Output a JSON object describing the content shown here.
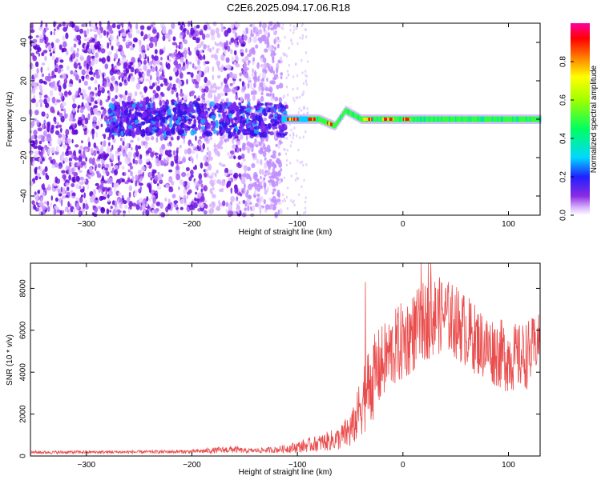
{
  "figure": {
    "title": "C2E6.2025.094.17.06.R18"
  },
  "chart_data": [
    {
      "type": "heatmap",
      "xlabel": "Height of straight line (km)",
      "ylabel": "Frequency (Hz)",
      "xlim": [
        -353,
        130
      ],
      "ylim": [
        -50,
        50
      ],
      "xticks": [
        -300,
        -200,
        -100,
        0,
        100
      ],
      "yticks": [
        -40,
        -20,
        0,
        20,
        40
      ],
      "grid": false,
      "colorbar": {
        "label": "Normalized spectral amplitude",
        "range": [
          0,
          1
        ],
        "ticks": [
          0.0,
          0.2,
          0.4,
          0.6,
          0.8
        ],
        "tick_labels": [
          "0.0",
          "0.2",
          "0.4",
          "0.6",
          "0.8"
        ],
        "colormap": "rainbow (white → purple → blue → cyan → green → yellow → orange → red → magenta)"
      },
      "features": {
        "noise_region_x": [
          -353,
          -115
        ],
        "signal_line_start_x": -115,
        "signal_line_freq_hz": 0,
        "wiggle_region_x": [
          -80,
          -40
        ]
      }
    },
    {
      "type": "line",
      "xlabel": "Height of straight line (km)",
      "ylabel": "SNR (10 * v/v)",
      "xlim": [
        -353,
        130
      ],
      "ylim": [
        0,
        9200
      ],
      "xticks": [
        -300,
        -200,
        -100,
        0,
        100
      ],
      "yticks": [
        0,
        2000,
        4000,
        6000,
        8000
      ],
      "grid": false,
      "series": [
        {
          "color": "#e83a3a",
          "envelope_points": [
            [
              -353,
              250
            ],
            [
              -300,
              260
            ],
            [
              -250,
              270
            ],
            [
              -200,
              300
            ],
            [
              -160,
              500
            ],
            [
              -150,
              350
            ],
            [
              -120,
              450
            ],
            [
              -100,
              700
            ],
            [
              -80,
              1000
            ],
            [
              -60,
              1400
            ],
            [
              -45,
              2500
            ],
            [
              -40,
              4200
            ],
            [
              -35,
              5000
            ],
            [
              -25,
              6000
            ],
            [
              -15,
              6500
            ],
            [
              -5,
              7200
            ],
            [
              10,
              7800
            ],
            [
              20,
              8300
            ],
            [
              30,
              8600
            ],
            [
              40,
              8500
            ],
            [
              55,
              8000
            ],
            [
              70,
              7200
            ],
            [
              80,
              6800
            ],
            [
              95,
              6500
            ],
            [
              110,
              6300
            ],
            [
              130,
              6800
            ]
          ],
          "lower_points": [
            [
              -353,
              100
            ],
            [
              -200,
              120
            ],
            [
              -100,
              150
            ],
            [
              -50,
              300
            ],
            [
              -30,
              1500
            ],
            [
              -15,
              3000
            ],
            [
              0,
              3500
            ],
            [
              20,
              4500
            ],
            [
              40,
              5000
            ],
            [
              60,
              4200
            ],
            [
              80,
              3500
            ],
            [
              100,
              3000
            ],
            [
              120,
              3200
            ],
            [
              130,
              4500
            ]
          ]
        }
      ]
    }
  ]
}
